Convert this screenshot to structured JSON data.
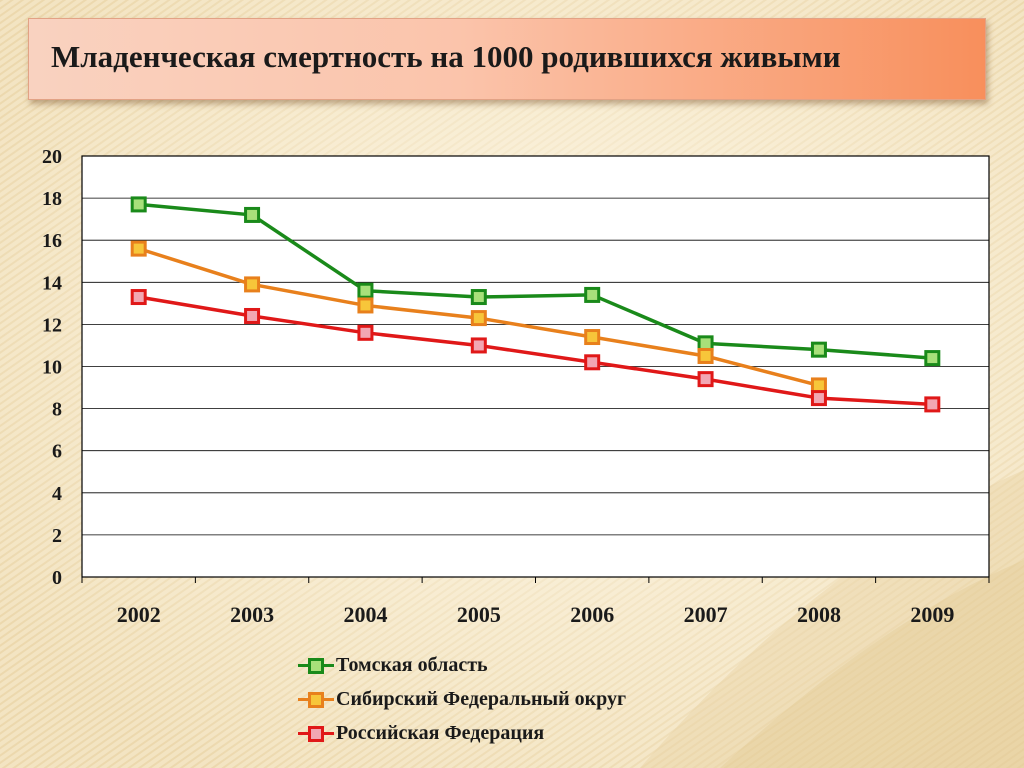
{
  "title": "Младенческая смертность на 1000 родившихся живыми",
  "colors": {
    "tomsk": "#1a8a1a",
    "siberia": "#e8801c",
    "russia": "#e01818",
    "marker_fill": "#f2a7b3",
    "tomsk_marker_fill": "#a8e07a",
    "siberia_marker_fill": "#f7c63a"
  },
  "chart_data": {
    "type": "line",
    "title": "",
    "xlabel": "",
    "ylabel": "",
    "categories": [
      "2002",
      "2003",
      "2004",
      "2005",
      "2006",
      "2007",
      "2008",
      "2009"
    ],
    "ylim": [
      0,
      20
    ],
    "yticks": [
      0,
      2,
      4,
      6,
      8,
      10,
      12,
      14,
      16,
      18,
      20
    ],
    "grid": true,
    "legend_position": "bottom",
    "series": [
      {
        "name": "Томская область",
        "values": [
          17.7,
          17.2,
          13.6,
          13.3,
          13.4,
          11.1,
          10.8,
          10.4
        ]
      },
      {
        "name": "Сибирский Федеральный округ",
        "values": [
          15.6,
          13.9,
          12.9,
          12.3,
          11.4,
          10.5,
          9.1,
          null
        ]
      },
      {
        "name": "Российская Федерация",
        "values": [
          13.3,
          12.4,
          11.6,
          11.0,
          10.2,
          9.4,
          8.5,
          8.2
        ]
      }
    ]
  }
}
